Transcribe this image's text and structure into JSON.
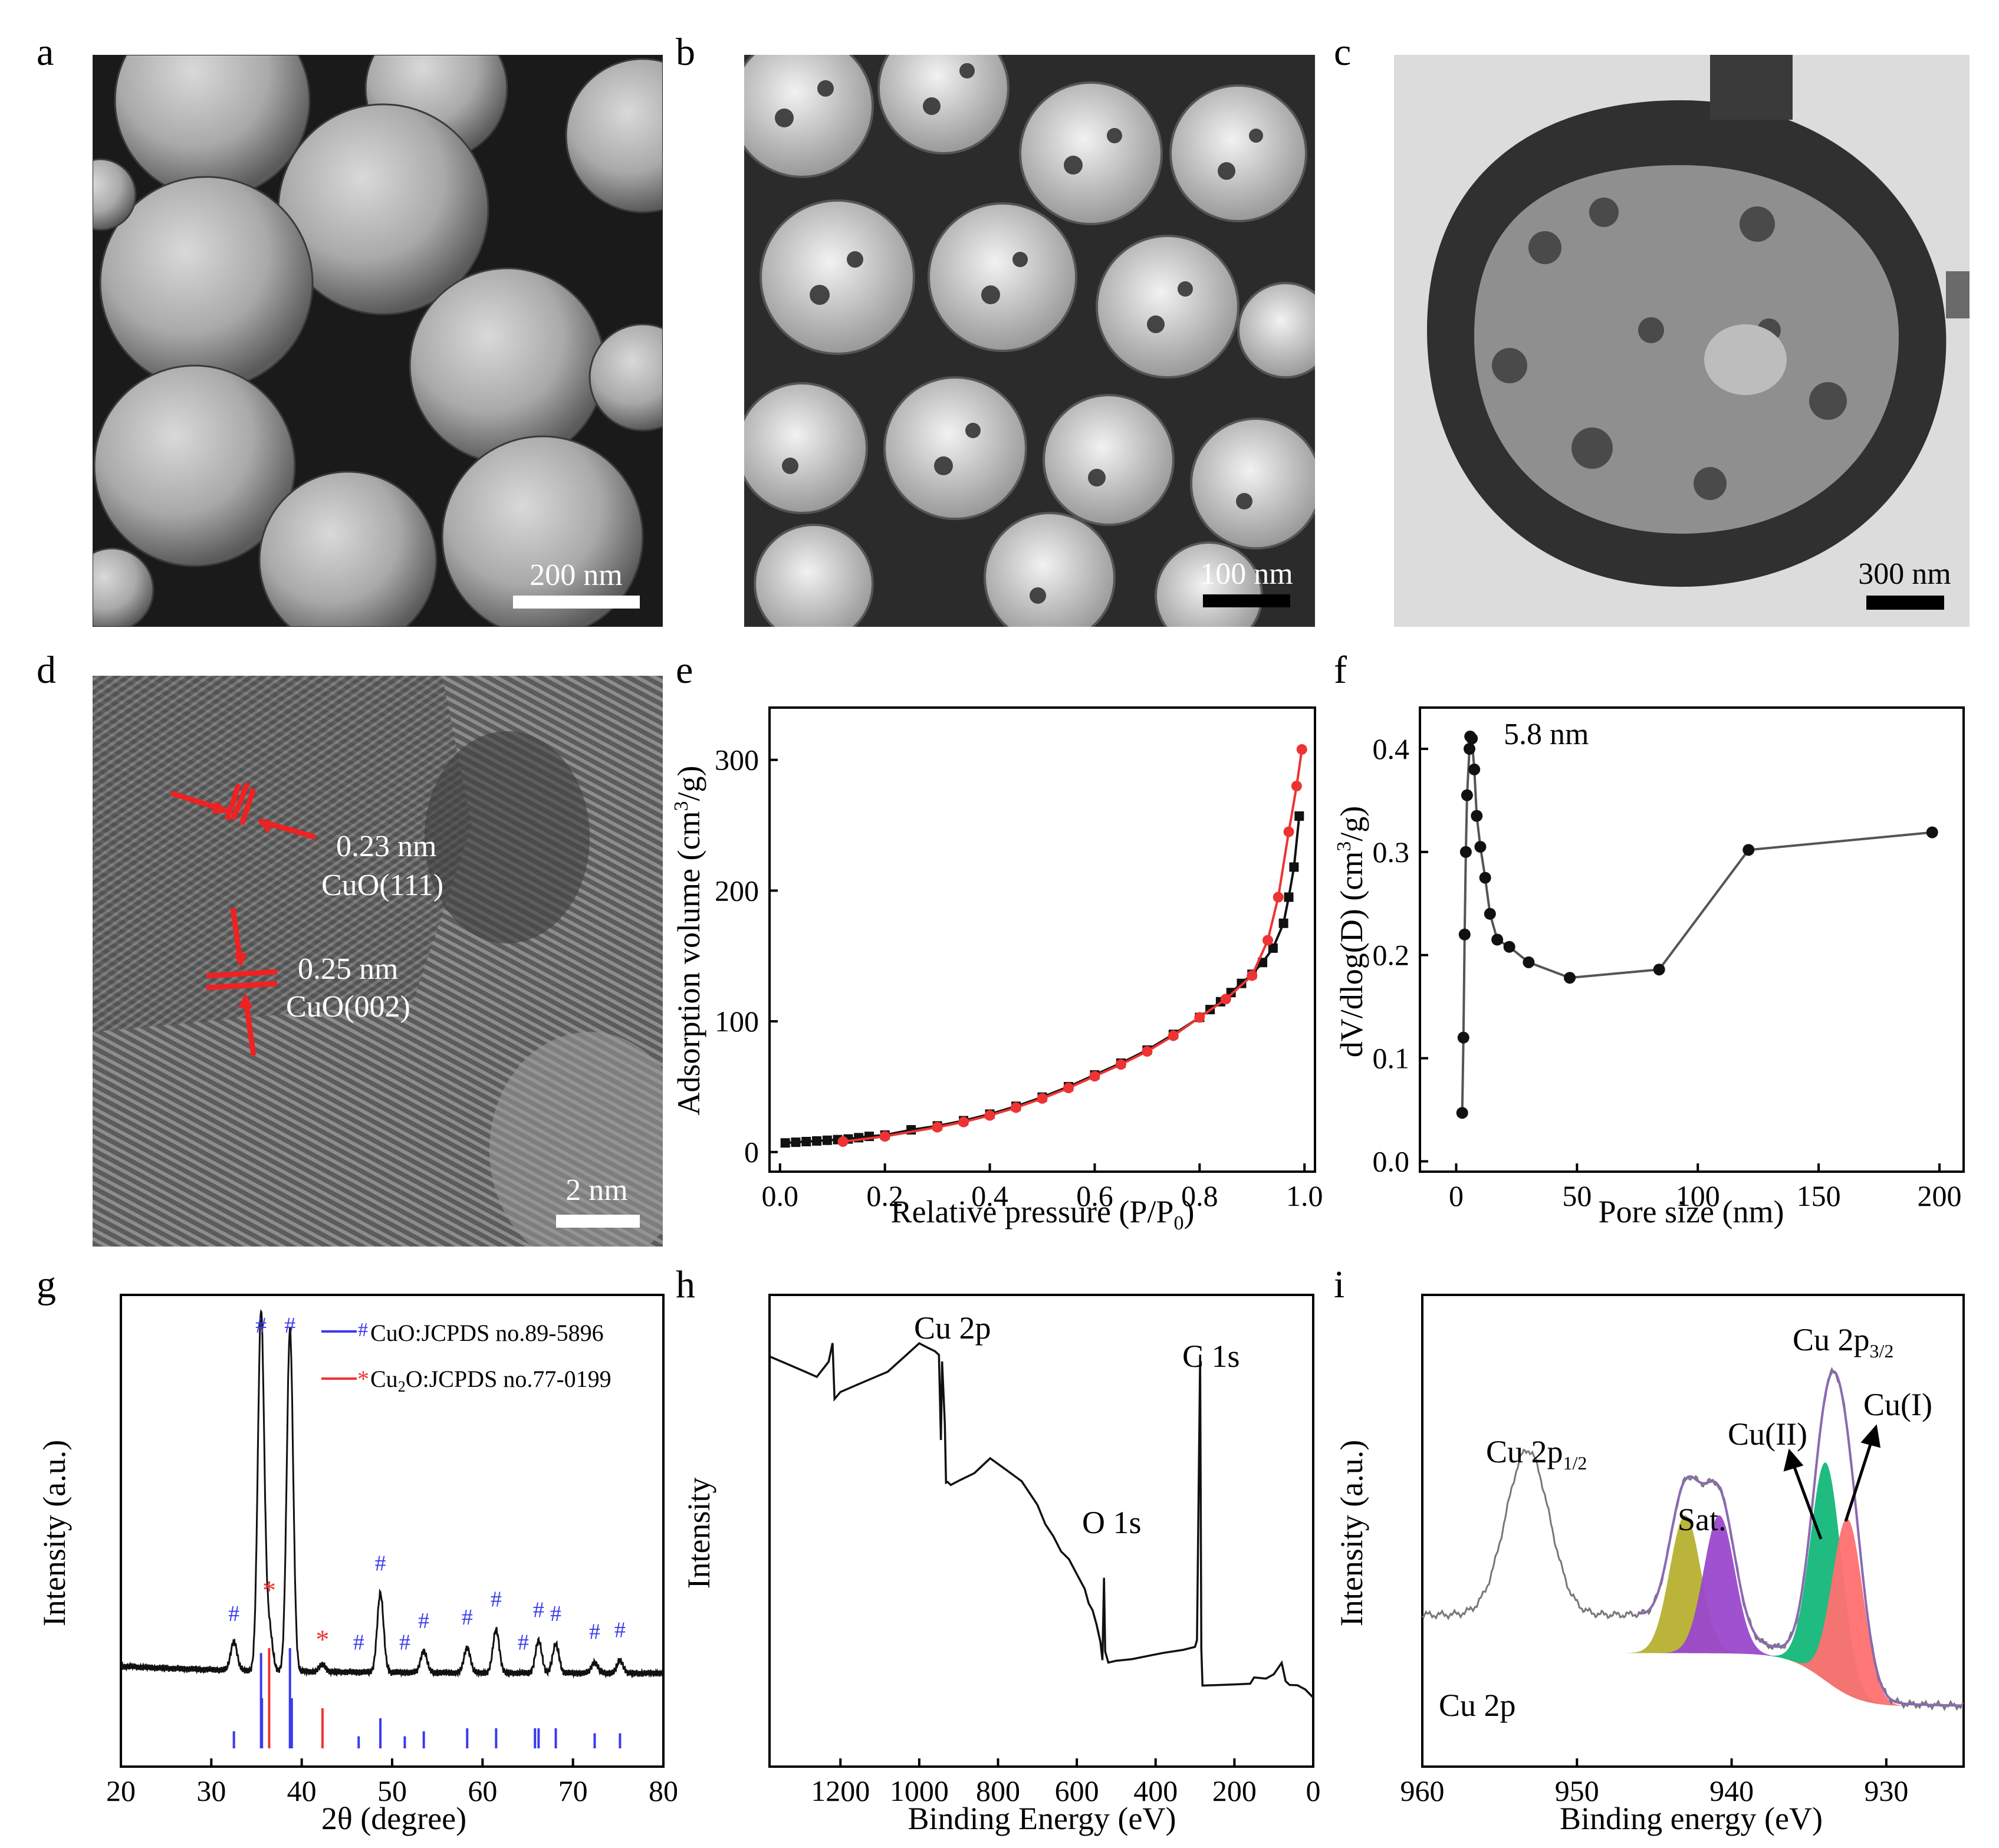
{
  "panel_labels": [
    "a",
    "b",
    "c",
    "d",
    "e",
    "f",
    "g",
    "h",
    "i"
  ],
  "images": {
    "a": {
      "scale_bar": "200 nm",
      "kind": "SEM micrograph of dense nanoparticle spheres"
    },
    "b": {
      "scale_bar": "100 nm",
      "kind": "SEM micrograph of porous particle aggregates"
    },
    "c": {
      "scale_bar": "300 nm",
      "kind": "TEM micrograph of a single porous hollow sphere"
    },
    "d": {
      "scale_bar": "2 nm",
      "kind": "HRTEM lattice fringe image",
      "annotations": [
        "0.23 nm",
        "CuO(111)",
        "0.25 nm",
        "CuO(002)"
      ]
    }
  },
  "colors": {
    "red": "#ee3333",
    "black": "#111111",
    "blue": "#3a3aee",
    "olive": "#b6b030",
    "purple": "#9a48cc",
    "green": "#13b77a",
    "salmon": "#ff7070"
  },
  "chart_data": [
    {
      "panel": "e",
      "type": "line",
      "xlabel": "Relative pressure (P/P",
      "xlabel_sub": "0",
      "xlabel_end": ")",
      "ylabel": "Adsorption volume (cm",
      "ylabel_sup": "3",
      "ylabel_end": "/g)",
      "xlim": [
        -0.02,
        1.02
      ],
      "ylim": [
        -15,
        340
      ],
      "xticks": [
        "0.0",
        "0.2",
        "0.4",
        "0.6",
        "0.8",
        "1.0"
      ],
      "yticks": [
        "0",
        "100",
        "200",
        "300"
      ],
      "series": [
        {
          "color": "#111111",
          "marker": "square",
          "x": [
            0.01,
            0.03,
            0.05,
            0.07,
            0.09,
            0.11,
            0.13,
            0.15,
            0.17,
            0.2,
            0.25,
            0.3,
            0.35,
            0.4,
            0.45,
            0.5,
            0.55,
            0.6,
            0.65,
            0.7,
            0.75,
            0.8,
            0.82,
            0.84,
            0.86,
            0.88,
            0.9,
            0.92,
            0.94,
            0.96,
            0.97,
            0.98,
            0.99
          ],
          "y": [
            7,
            7.5,
            8,
            8.5,
            9,
            9.5,
            10,
            11,
            12,
            13,
            17,
            20,
            24,
            29,
            35,
            42,
            50,
            59,
            68,
            78,
            90,
            103,
            109,
            115,
            122,
            129,
            136,
            145,
            156,
            175,
            195,
            218,
            257
          ]
        },
        {
          "color": "#ee3333",
          "marker": "circle",
          "x": [
            0.12,
            0.2,
            0.3,
            0.35,
            0.4,
            0.45,
            0.5,
            0.55,
            0.6,
            0.65,
            0.7,
            0.75,
            0.8,
            0.85,
            0.9,
            0.93,
            0.95,
            0.97,
            0.985,
            0.995
          ],
          "y": [
            8,
            12,
            19,
            23,
            28,
            34,
            41,
            49,
            58,
            67,
            77,
            89,
            103,
            117,
            135,
            162,
            195,
            245,
            280,
            308
          ]
        }
      ]
    },
    {
      "panel": "f",
      "type": "line",
      "annotation": "5.8 nm",
      "xlabel": "Pore size (nm)",
      "ylabel": "dV/dlog(D) (cm",
      "ylabel_sup": "3",
      "ylabel_end": "/g)",
      "xlim": [
        -15,
        210
      ],
      "ylim": [
        -0.01,
        0.44
      ],
      "xticks": [
        "0",
        "50",
        "100",
        "150",
        "200"
      ],
      "yticks": [
        "0.0",
        "0.1",
        "0.2",
        "0.3",
        "0.4"
      ],
      "series": [
        {
          "color": "#111111",
          "marker": "circle",
          "x": [
            2.5,
            3,
            3.5,
            4,
            4.5,
            5.5,
            5.8,
            6.5,
            7.5,
            8.5,
            10,
            12,
            14,
            17,
            22,
            30,
            47,
            84,
            121,
            197
          ],
          "y": [
            0.047,
            0.12,
            0.22,
            0.3,
            0.355,
            0.4,
            0.412,
            0.41,
            0.38,
            0.335,
            0.305,
            0.275,
            0.24,
            0.215,
            0.208,
            0.193,
            0.178,
            0.186,
            0.302,
            0.319
          ]
        }
      ]
    },
    {
      "panel": "g",
      "type": "line",
      "xlabel": "2θ (degree)",
      "ylabel": "Intensity (a.u.)",
      "xlim": [
        20,
        80
      ],
      "xticks": [
        "20",
        "30",
        "40",
        "50",
        "60",
        "70",
        "80"
      ],
      "legend": [
        {
          "label": "CuO:JCPDS no.89-5896",
          "color": "#3a3aee",
          "marker": "#"
        },
        {
          "label": "Cu",
          "sub": "2",
          "label_end": "O:JCPDS no.77-0199",
          "color": "#ee3333",
          "marker": "*"
        }
      ],
      "peaks": [
        [
          32.5,
          0.08
        ],
        [
          35.5,
          1.0
        ],
        [
          38.7,
          0.95
        ],
        [
          48.7,
          0.22
        ],
        [
          53.5,
          0.06
        ],
        [
          58.3,
          0.07
        ],
        [
          61.5,
          0.12
        ],
        [
          66.2,
          0.09
        ],
        [
          68.1,
          0.08
        ],
        [
          72.4,
          0.03
        ],
        [
          75.2,
          0.035
        ],
        [
          36.4,
          0.12
        ],
        [
          42.3,
          0.02
        ]
      ],
      "hash_markers_x": [
        32.5,
        35.5,
        38.7,
        46.3,
        48.7,
        51.4,
        53.5,
        58.3,
        61.5,
        64.5,
        66.2,
        68.1,
        72.4,
        75.2
      ],
      "star_markers_x": [
        36.4,
        42.3
      ],
      "cuo_lines": [
        [
          32.5,
          0.17
        ],
        [
          35.5,
          0.95
        ],
        [
          35.6,
          0.5
        ],
        [
          38.7,
          1.0
        ],
        [
          38.9,
          0.5
        ],
        [
          46.3,
          0.12
        ],
        [
          48.7,
          0.3
        ],
        [
          51.4,
          0.12
        ],
        [
          53.5,
          0.17
        ],
        [
          58.3,
          0.2
        ],
        [
          61.5,
          0.2
        ],
        [
          65.8,
          0.2
        ],
        [
          66.2,
          0.2
        ],
        [
          68.1,
          0.2
        ],
        [
          72.4,
          0.15
        ],
        [
          75.2,
          0.15
        ]
      ],
      "cu2o_lines": [
        [
          36.4,
          1.0
        ],
        [
          42.3,
          0.4
        ]
      ]
    },
    {
      "panel": "h",
      "type": "line",
      "xlabel": "Binding Energy (eV)",
      "ylabel": "Intensity",
      "xlim": [
        1380,
        0
      ],
      "x_reversed": true,
      "xticks": [
        "1200",
        "1000",
        "800",
        "600",
        "400",
        "200",
        "0"
      ],
      "annotations": [
        "Cu 2p",
        "O 1s",
        "C 1s"
      ],
      "x": [
        1380,
        1340,
        1300,
        1260,
        1230,
        1220,
        1215,
        1200,
        1160,
        1120,
        1080,
        1040,
        1000,
        980,
        960,
        950,
        945,
        942,
        935,
        932,
        928,
        920,
        900,
        860,
        820,
        780,
        740,
        720,
        700,
        680,
        660,
        640,
        620,
        600,
        580,
        570,
        560,
        550,
        540,
        535,
        531,
        528,
        520,
        500,
        460,
        420,
        380,
        330,
        300,
        295,
        287,
        284,
        281,
        270,
        240,
        200,
        160,
        150,
        120,
        100,
        80,
        70,
        60,
        40,
        20,
        0
      ],
      "y": [
        0.92,
        0.9,
        0.88,
        0.86,
        0.9,
        0.95,
        0.8,
        0.82,
        0.84,
        0.86,
        0.88,
        0.92,
        0.96,
        0.95,
        0.94,
        0.93,
        0.7,
        0.91,
        0.74,
        0.58,
        0.58,
        0.57,
        0.58,
        0.6,
        0.64,
        0.61,
        0.58,
        0.55,
        0.52,
        0.47,
        0.44,
        0.4,
        0.38,
        0.34,
        0.3,
        0.26,
        0.24,
        0.2,
        0.15,
        0.1,
        0.32,
        0.12,
        0.09,
        0.095,
        0.1,
        0.11,
        0.12,
        0.13,
        0.14,
        0.16,
        0.93,
        0.14,
        0.04,
        0.04,
        0.04,
        0.04,
        0.04,
        0.055,
        0.05,
        0.06,
        0.09,
        0.04,
        0.03,
        0.03,
        0.02,
        0.0
      ]
    },
    {
      "panel": "i",
      "type": "line",
      "xlabel": "Binding energy (eV)",
      "ylabel": "Intensity (a.u.)",
      "xlim": [
        960,
        925
      ],
      "x_reversed": true,
      "xticks": [
        "960",
        "950",
        "940",
        "930"
      ],
      "annotations": [
        "Cu 2p",
        "Sat.",
        "Cu(II)",
        "Cu(I)"
      ],
      "label_p12": {
        "text": "Cu 2p",
        "sub": "1/2"
      },
      "label_p32": {
        "text": "Cu 2p",
        "sub": "3/2"
      },
      "components": [
        {
          "name": "Sat.",
          "color": "#b6b030",
          "center": 943.0,
          "height": 0.36
        },
        {
          "name": "Sat.",
          "color": "#9a48cc",
          "center": 940.8,
          "height": 0.36
        },
        {
          "name": "Cu(II)",
          "color": "#13b77a",
          "center": 933.9,
          "height": 0.57
        },
        {
          "name": "Cu(I)",
          "color": "#ff7070",
          "center": 932.5,
          "height": 0.46
        }
      ]
    }
  ]
}
